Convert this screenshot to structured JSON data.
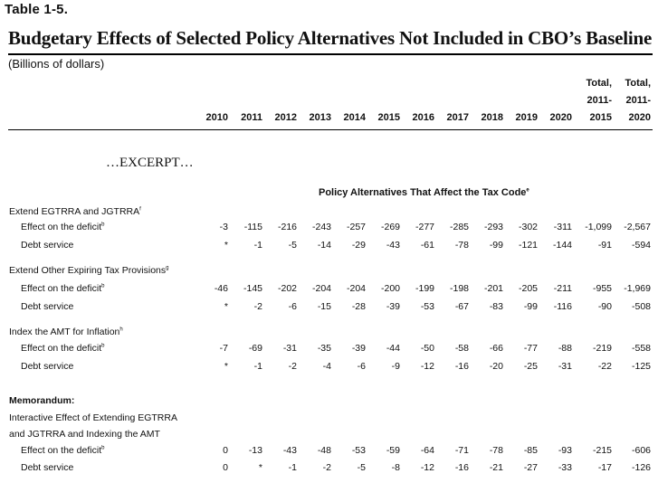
{
  "table_tag": "Table 1-5.",
  "title": "Budgetary Effects of Selected Policy Alternatives Not Included in CBO’s Baseline",
  "units": "(Billions of dollars)",
  "columns": [
    "2010",
    "2011",
    "2012",
    "2013",
    "2014",
    "2015",
    "2016",
    "2017",
    "2018",
    "2019",
    "2020"
  ],
  "total_cols": [
    {
      "line1": "Total,",
      "line2": "2011-",
      "line3": "2015"
    },
    {
      "line1": "Total,",
      "line2": "2011-",
      "line3": "2020"
    }
  ],
  "excerpt": "…EXCERPT…",
  "section_heading": "Policy Alternatives That Affect the Tax Code",
  "section_note": "e",
  "groups": [
    {
      "label": "Extend EGTRRA and JGTRRA",
      "note": "f",
      "rows": [
        {
          "label": "Effect on the deficit",
          "note": "b",
          "values": [
            "-3",
            "-115",
            "-216",
            "-243",
            "-257",
            "-269",
            "-277",
            "-285",
            "-293",
            "-302",
            "-311",
            "-1,099",
            "-2,567"
          ]
        },
        {
          "label": "Debt service",
          "note": "",
          "values": [
            "*",
            "-1",
            "-5",
            "-14",
            "-29",
            "-43",
            "-61",
            "-78",
            "-99",
            "-121",
            "-144",
            "-91",
            "-594"
          ]
        }
      ]
    },
    {
      "label": "Extend Other Expiring Tax Provisions",
      "note": "g",
      "rows": [
        {
          "label": "Effect on the deficit",
          "note": "b",
          "values": [
            "-46",
            "-145",
            "-202",
            "-204",
            "-204",
            "-200",
            "-199",
            "-198",
            "-201",
            "-205",
            "-211",
            "-955",
            "-1,969"
          ]
        },
        {
          "label": "Debt service",
          "note": "",
          "values": [
            "*",
            "-2",
            "-6",
            "-15",
            "-28",
            "-39",
            "-53",
            "-67",
            "-83",
            "-99",
            "-116",
            "-90",
            "-508"
          ]
        }
      ]
    },
    {
      "label": "Index the AMT for Inflation",
      "note": "h",
      "rows": [
        {
          "label": "Effect on the deficit",
          "note": "b",
          "values": [
            "-7",
            "-69",
            "-31",
            "-35",
            "-39",
            "-44",
            "-50",
            "-58",
            "-66",
            "-77",
            "-88",
            "-219",
            "-558"
          ]
        },
        {
          "label": "Debt service",
          "note": "",
          "values": [
            "*",
            "-1",
            "-2",
            "-4",
            "-6",
            "-9",
            "-12",
            "-16",
            "-20",
            "-25",
            "-31",
            "-22",
            "-125"
          ]
        }
      ]
    }
  ],
  "memorandum": {
    "heading": "Memorandum:",
    "label_line1": "Interactive Effect of Extending EGTRRA",
    "label_line2": "and JGTRRA and Indexing the AMT",
    "rows": [
      {
        "label": "Effect on the deficit",
        "note": "b",
        "values": [
          "0",
          "-13",
          "-43",
          "-48",
          "-53",
          "-59",
          "-64",
          "-71",
          "-78",
          "-85",
          "-93",
          "-215",
          "-606"
        ]
      },
      {
        "label": "Debt service",
        "note": "",
        "values": [
          "0",
          "*",
          "-1",
          "-2",
          "-5",
          "-8",
          "-12",
          "-16",
          "-21",
          "-27",
          "-33",
          "-17",
          "-126"
        ]
      }
    ]
  }
}
